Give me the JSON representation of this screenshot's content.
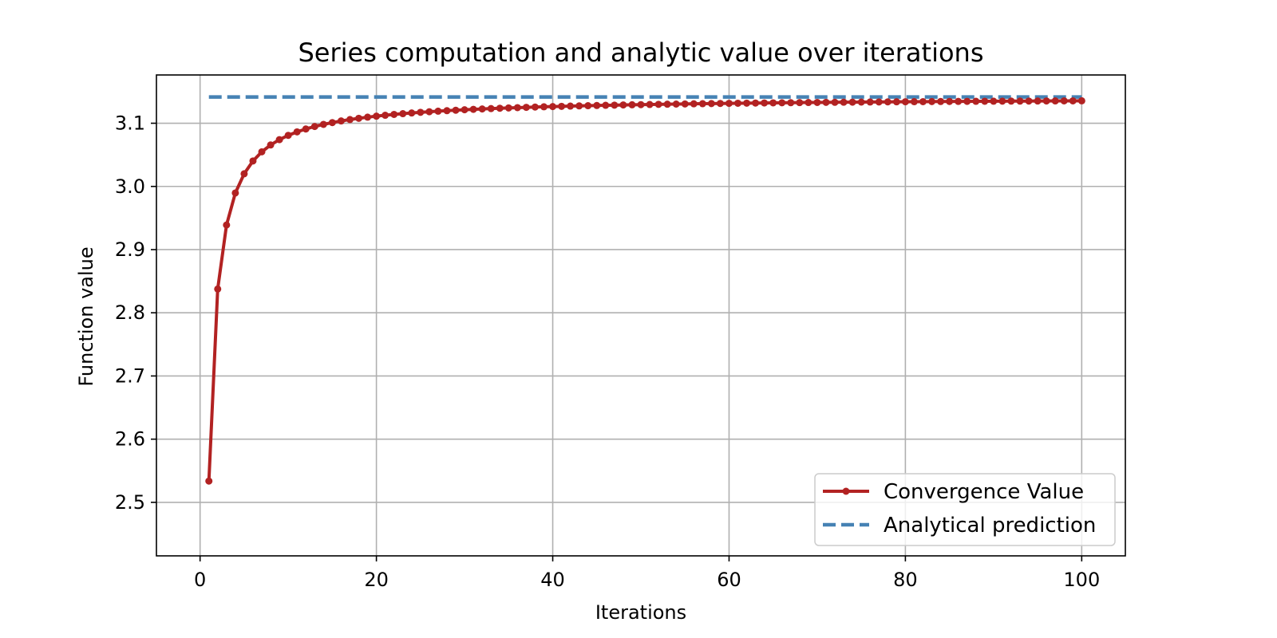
{
  "chart_data": {
    "type": "line",
    "title": "Series computation and analytic value over iterations",
    "xlabel": "Iterations",
    "ylabel": "Function value",
    "xlim": [
      -4.95,
      104.95
    ],
    "ylim": [
      2.4153,
      3.1764
    ],
    "xticks": [
      0,
      20,
      40,
      60,
      80,
      100
    ],
    "yticks": [
      2.5,
      2.6,
      2.7,
      2.8,
      2.9,
      3.0,
      3.1
    ],
    "ytick_labels": [
      "2.5",
      "2.6",
      "2.7",
      "2.8",
      "2.9",
      "3.0",
      "3.1"
    ],
    "grid": true,
    "legend_position": "lower-right",
    "colors": {
      "convergence": "#b22222",
      "analytical": "#4682b4",
      "grid": "#b0b0b0"
    },
    "series": [
      {
        "name": "Convergence Value",
        "style": "solid-with-markers",
        "x_range": [
          1,
          100
        ],
        "formula": "pi - 6/(pi^2 * n)"
      },
      {
        "name": "Analytical prediction",
        "style": "dashed",
        "x": [
          1,
          100
        ],
        "y": [
          3.14159,
          3.14159
        ]
      }
    ]
  }
}
